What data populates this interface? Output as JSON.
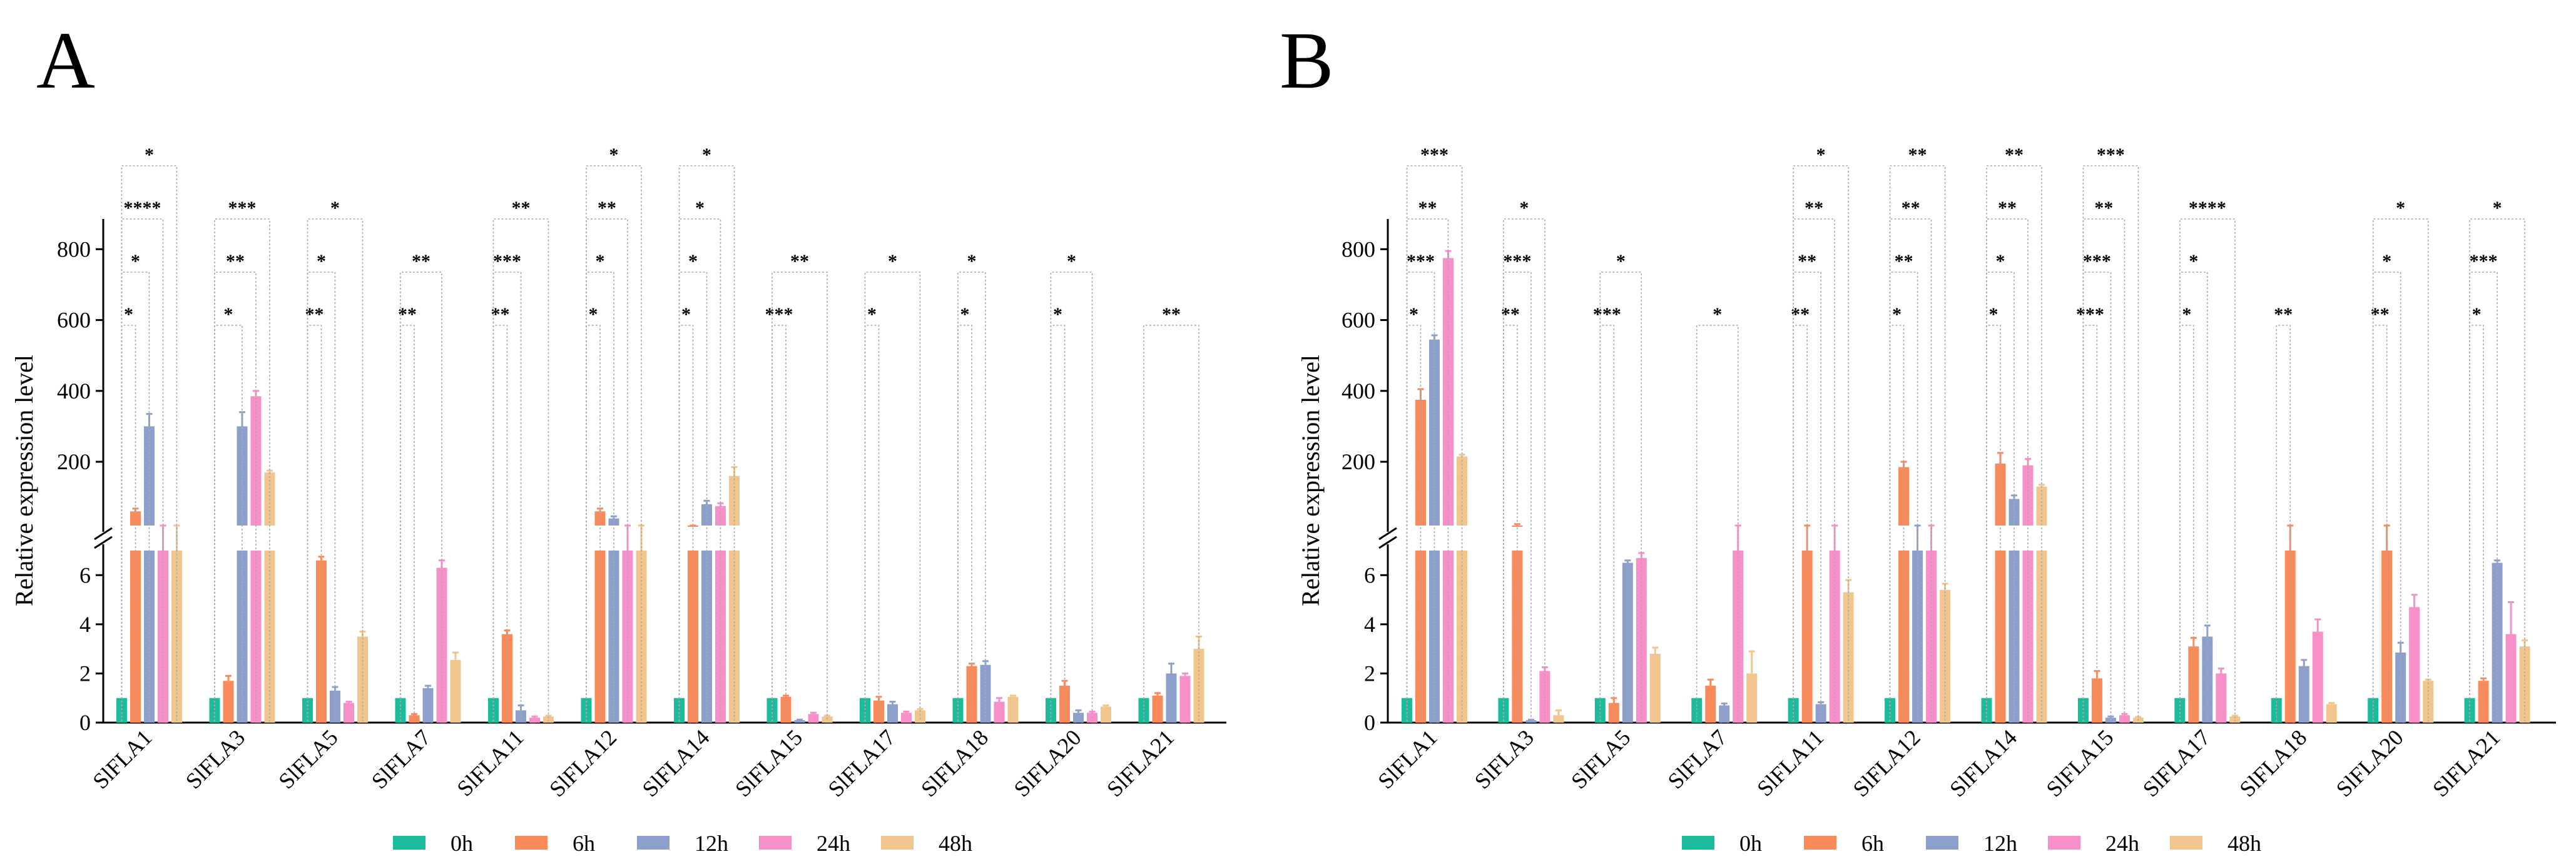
{
  "legend": [
    {
      "label": "0h",
      "color": "#1abc9c"
    },
    {
      "label": "6h",
      "color": "#fb8a5a"
    },
    {
      "label": "12h",
      "color": "#8da0cb"
    },
    {
      "label": "24h",
      "color": "#f78fc8"
    },
    {
      "label": "48h",
      "color": "#f0c68e"
    }
  ],
  "chart_data": [
    {
      "type": "bar",
      "panel": "A",
      "ylabel": "Relative expression level",
      "categories": [
        "SlFLA1",
        "SlFLA3",
        "SlFLA5",
        "SlFLA7",
        "SlFLA11",
        "SlFLA12",
        "SlFLA14",
        "SlFLA15",
        "SlFLA17",
        "SlFLA18",
        "SlFLA20",
        "SlFLA21"
      ],
      "y_axis_broken": true,
      "lower_range": [
        0,
        7
      ],
      "lower_ticks": [
        0,
        2,
        4,
        6
      ],
      "lower_tick_labels": [
        "0",
        "2",
        "4",
        "6"
      ],
      "upper_range": [
        20,
        850
      ],
      "upper_ticks": [
        200,
        400,
        600,
        800
      ],
      "upper_tick_labels": [
        "200",
        "400",
        "600",
        "800"
      ],
      "series": [
        {
          "name": "0h",
          "values": [
            1,
            1,
            1,
            1,
            1,
            1,
            1,
            1,
            1,
            1,
            1,
            1
          ],
          "errors": [
            0,
            0,
            0,
            0,
            0,
            0,
            0,
            0,
            0,
            0,
            0,
            0
          ]
        },
        {
          "name": "6h",
          "values": [
            60,
            1.7,
            6.6,
            0.3,
            3.6,
            60,
            15,
            1.05,
            0.9,
            2.3,
            1.5,
            1.1
          ],
          "errors": [
            8,
            0.2,
            0.15,
            0.05,
            0.15,
            8,
            3,
            0.05,
            0.15,
            0.1,
            0.2,
            0.1
          ]
        },
        {
          "name": "12h",
          "values": [
            300,
            300,
            1.3,
            1.4,
            0.5,
            40,
            80,
            0.1,
            0.75,
            2.35,
            0.4,
            2.0
          ],
          "errors": [
            35,
            40,
            0.15,
            0.1,
            0.2,
            6,
            10,
            0.02,
            0.1,
            0.15,
            0.1,
            0.4
          ]
        },
        {
          "name": "24h",
          "values": [
            7,
            385,
            0.8,
            6.3,
            0.2,
            7,
            75,
            0.35,
            0.4,
            0.85,
            0.4,
            1.9
          ],
          "errors": [
            0.5,
            15,
            0.05,
            0.3,
            0.05,
            1,
            8,
            0.05,
            0.05,
            0.15,
            0.05,
            0.1
          ]
        },
        {
          "name": "48h",
          "values": [
            7,
            170,
            3.5,
            2.55,
            0.25,
            7,
            160,
            0.25,
            0.5,
            1.05,
            0.65,
            3.0
          ],
          "errors": [
            0.5,
            5,
            0.2,
            0.3,
            0.03,
            1,
            25,
            0.03,
            0.05,
            0.05,
            0.05,
            0.5
          ]
        }
      ],
      "significance": [
        [
          {
            "stars": "*",
            "to": 1
          },
          {
            "stars": "*",
            "to": 2
          },
          {
            "stars": "****",
            "to": 3
          },
          {
            "stars": "*",
            "to": 4
          }
        ],
        [
          {
            "stars": "*",
            "to": 2
          },
          {
            "stars": "**",
            "to": 3
          },
          {
            "stars": "***",
            "to": 4
          }
        ],
        [
          {
            "stars": "**",
            "to": 1
          },
          {
            "stars": "*",
            "to": 2
          },
          {
            "stars": "*",
            "to": 4
          }
        ],
        [
          {
            "stars": "**",
            "to": 1
          },
          {
            "stars": "**",
            "to": 3
          }
        ],
        [
          {
            "stars": "**",
            "to": 1
          },
          {
            "stars": "***",
            "to": 2
          },
          {
            "stars": "**",
            "to": 4
          }
        ],
        [
          {
            "stars": "*",
            "to": 1
          },
          {
            "stars": "*",
            "to": 2
          },
          {
            "stars": "**",
            "to": 3
          },
          {
            "stars": "*",
            "to": 4
          }
        ],
        [
          {
            "stars": "*",
            "to": 1
          },
          {
            "stars": "*",
            "to": 2
          },
          {
            "stars": "*",
            "to": 3
          },
          {
            "stars": "*",
            "to": 4
          }
        ],
        [
          {
            "stars": "***",
            "to": 1
          },
          {
            "stars": "**",
            "to": 4
          }
        ],
        [
          {
            "stars": "*",
            "to": 1
          },
          {
            "stars": "*",
            "to": 4
          }
        ],
        [
          {
            "stars": "*",
            "to": 1
          },
          {
            "stars": "*",
            "to": 2
          }
        ],
        [
          {
            "stars": "*",
            "to": 1
          },
          {
            "stars": "*",
            "to": 3
          }
        ],
        [
          {
            "stars": "**",
            "to": 4
          }
        ]
      ]
    },
    {
      "type": "bar",
      "panel": "B",
      "ylabel": "Relative expression level",
      "categories": [
        "SlFLA1",
        "SlFLA3",
        "SlFLA5",
        "SlFLA7",
        "SlFLA11",
        "SlFLA12",
        "SlFLA14",
        "SlFLA15",
        "SlFLA17",
        "SlFLA18",
        "SlFLA20",
        "SlFLA21"
      ],
      "y_axis_broken": true,
      "lower_range": [
        0,
        7
      ],
      "lower_ticks": [
        0,
        2,
        4,
        6
      ],
      "lower_tick_labels": [
        "0",
        "2",
        "4",
        "6"
      ],
      "upper_range": [
        20,
        850
      ],
      "upper_ticks": [
        200,
        400,
        600,
        800
      ],
      "upper_tick_labels": [
        "200",
        "400",
        "600",
        "800"
      ],
      "series": [
        {
          "name": "0h",
          "values": [
            1,
            1,
            1,
            1,
            1,
            1,
            1,
            1,
            1,
            1,
            1,
            1
          ],
          "errors": [
            0,
            0,
            0,
            0,
            0,
            0,
            0,
            0,
            0,
            0,
            0,
            0
          ]
        },
        {
          "name": "6h",
          "values": [
            375,
            20,
            0.8,
            1.5,
            7,
            185,
            195,
            1.8,
            3.1,
            7,
            7,
            1.7
          ],
          "errors": [
            30,
            4,
            0.2,
            0.25,
            0.5,
            15,
            30,
            0.3,
            0.35,
            0.5,
            0.5,
            0.1
          ]
        },
        {
          "name": "12h",
          "values": [
            545,
            0.1,
            6.5,
            0.7,
            0.75,
            7,
            95,
            0.2,
            3.5,
            2.3,
            2.85,
            6.5
          ],
          "errors": [
            12,
            0.02,
            0.1,
            0.08,
            0.08,
            0.5,
            10,
            0.05,
            0.45,
            0.25,
            0.4,
            0.1
          ]
        },
        {
          "name": "24h",
          "values": [
            775,
            2.1,
            6.7,
            7,
            7,
            7,
            190,
            0.3,
            2.0,
            3.7,
            4.7,
            3.6
          ],
          "errors": [
            20,
            0.15,
            0.2,
            0.5,
            0.5,
            0.5,
            18,
            0.05,
            0.2,
            0.5,
            0.5,
            1.3
          ]
        },
        {
          "name": "48h",
          "values": [
            215,
            0.3,
            2.8,
            2.0,
            5.3,
            5.4,
            130,
            0.2,
            0.25,
            0.75,
            1.7,
            3.1
          ],
          "errors": [
            5,
            0.2,
            0.25,
            0.9,
            0.5,
            0.25,
            5,
            0.03,
            0.03,
            0.05,
            0.05,
            0.25
          ]
        }
      ],
      "significance": [
        [
          {
            "stars": "*",
            "to": 1
          },
          {
            "stars": "***",
            "to": 2
          },
          {
            "stars": "**",
            "to": 3
          },
          {
            "stars": "***",
            "to": 4
          }
        ],
        [
          {
            "stars": "**",
            "to": 1
          },
          {
            "stars": "***",
            "to": 2
          },
          {
            "stars": "*",
            "to": 3
          }
        ],
        [
          {
            "stars": "***",
            "to": 1
          },
          {
            "stars": "*",
            "to": 3
          }
        ],
        [
          {
            "stars": "*",
            "to": 3
          }
        ],
        [
          {
            "stars": "**",
            "to": 1
          },
          {
            "stars": "**",
            "to": 2
          },
          {
            "stars": "**",
            "to": 3
          },
          {
            "stars": "*",
            "to": 4
          }
        ],
        [
          {
            "stars": "*",
            "to": 1
          },
          {
            "stars": "**",
            "to": 2
          },
          {
            "stars": "**",
            "to": 3
          },
          {
            "stars": "**",
            "to": 4
          }
        ],
        [
          {
            "stars": "*",
            "to": 1
          },
          {
            "stars": "*",
            "to": 2
          },
          {
            "stars": "**",
            "to": 3
          },
          {
            "stars": "**",
            "to": 4
          }
        ],
        [
          {
            "stars": "***",
            "to": 1
          },
          {
            "stars": "***",
            "to": 2
          },
          {
            "stars": "**",
            "to": 3
          },
          {
            "stars": "***",
            "to": 4
          }
        ],
        [
          {
            "stars": "*",
            "to": 1
          },
          {
            "stars": "*",
            "to": 2
          },
          {
            "stars": "****",
            "to": 4
          }
        ],
        [
          {
            "stars": "**",
            "to": 1
          }
        ],
        [
          {
            "stars": "**",
            "to": 1
          },
          {
            "stars": "*",
            "to": 2
          },
          {
            "stars": "*",
            "to": 4
          }
        ],
        [
          {
            "stars": "*",
            "to": 1
          },
          {
            "stars": "***",
            "to": 2
          },
          {
            "stars": "*",
            "to": 4
          }
        ]
      ]
    }
  ]
}
